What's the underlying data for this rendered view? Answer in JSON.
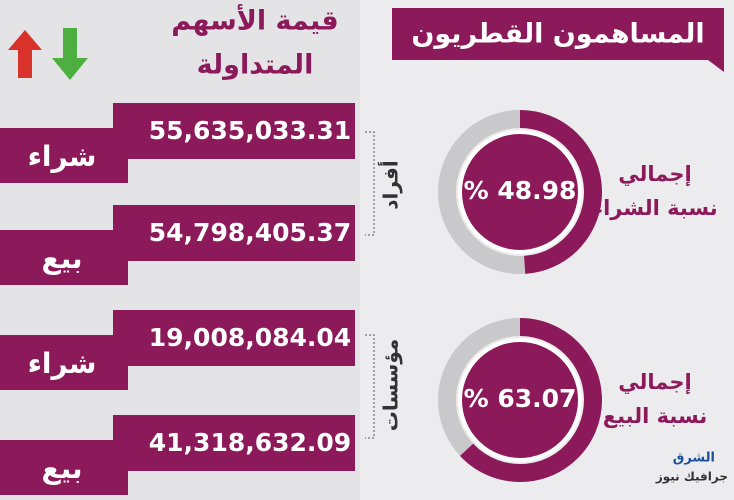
{
  "header": {
    "title": "المساهمون القطريون"
  },
  "column_title": [
    "قيمة الأسهم",
    "المتداولة"
  ],
  "rows": [
    {
      "label": "شراء",
      "value": "55,635,033.31"
    },
    {
      "label": "بيع",
      "value": "54,798,405.37"
    },
    {
      "label": "شراء",
      "value": "19,008,084.04"
    },
    {
      "label": "بيع",
      "value": "41,318,632.09"
    }
  ],
  "groups": [
    "أفراد",
    "مؤسسات"
  ],
  "donuts": [
    {
      "label": [
        "إجمالي",
        "نسبة الشراء"
      ],
      "value": 48.98,
      "value_label": "% 48.98"
    },
    {
      "label": [
        "إجمالي",
        "نسبة البيع"
      ],
      "value": 63.07,
      "value_label": "% 63.07"
    }
  ],
  "logo": [
    "الشرق",
    "جرافيك نيوز"
  ]
}
